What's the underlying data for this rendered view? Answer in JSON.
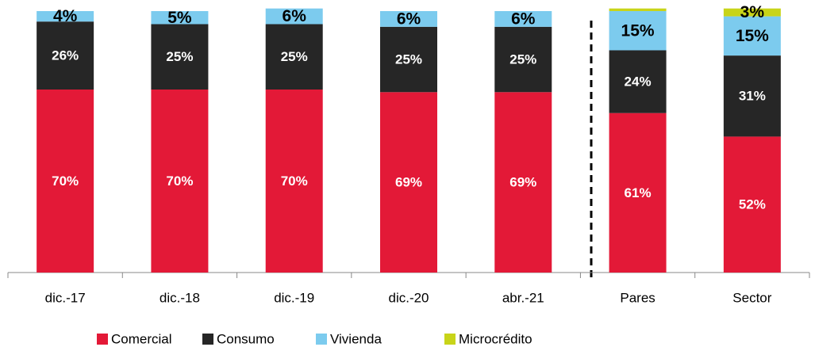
{
  "chart_data": {
    "type": "stacked_bar",
    "categories": [
      "dic.-17",
      "dic.-18",
      "dic.-19",
      "dic.-20",
      "abr.-21",
      "Pares",
      "Sector"
    ],
    "ylim": [
      0,
      100
    ],
    "series": [
      {
        "name": "Comercial",
        "color": "#e31937",
        "label_color": "#ffffff",
        "values": [
          70,
          70,
          70,
          69,
          69,
          61,
          52
        ],
        "value_labels": [
          "70%",
          "70%",
          "70%",
          "69%",
          "69%",
          "61%",
          "52%"
        ]
      },
      {
        "name": "Consumo",
        "color": "#262626",
        "label_color": "#ffffff",
        "values": [
          26,
          25,
          25,
          25,
          25,
          24,
          31
        ],
        "value_labels": [
          "26%",
          "25%",
          "25%",
          "25%",
          "25%",
          "24%",
          "31%"
        ]
      },
      {
        "name": "Vivienda",
        "color": "#7ccbee",
        "label_color": "#000000",
        "values": [
          4,
          5,
          6,
          6,
          6,
          15,
          15
        ],
        "value_labels": [
          "4%",
          "5%",
          "6%",
          "6%",
          "6%",
          "15%",
          "15%"
        ]
      },
      {
        "name": "Microcrédito",
        "color": "#c8d419",
        "label_color": "#000000",
        "values": [
          0,
          0,
          0,
          0,
          0,
          1,
          3
        ],
        "value_labels": [
          null,
          null,
          null,
          null,
          null,
          null,
          "3%"
        ]
      }
    ]
  }
}
